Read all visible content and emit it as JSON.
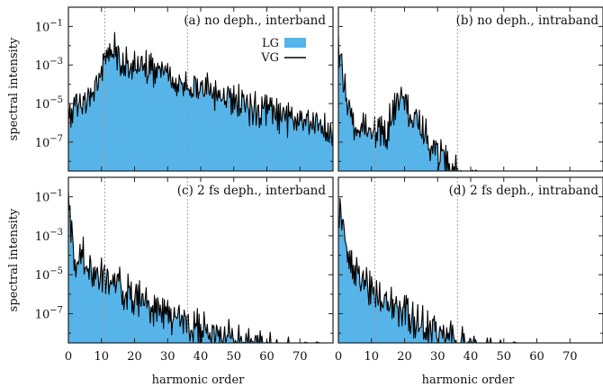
{
  "chart_data": [
    {
      "type": "area",
      "panel_label": "(a) no deph., interband",
      "ylabel": "spectral intensity",
      "xlabel": "",
      "yscale": "log",
      "ylim_log10": [
        -8.5,
        0
      ],
      "xlim": [
        0,
        80
      ],
      "guides_x": [
        11,
        36
      ],
      "x": [
        0,
        2,
        4,
        6,
        8,
        10,
        12,
        14,
        16,
        18,
        20,
        22,
        24,
        26,
        28,
        30,
        32,
        34,
        36,
        38,
        40,
        42,
        44,
        46,
        48,
        50,
        52,
        54,
        56,
        58,
        60,
        62,
        64,
        66,
        68,
        70,
        72,
        74,
        76,
        78,
        80
      ],
      "series": [
        {
          "name": "LG",
          "values_log10": [
            -4.8,
            -3.8,
            -4.6,
            -3.9,
            -3.2,
            -2.5,
            -1.6,
            -1.0,
            -1.7,
            -2.0,
            -2.3,
            -1.9,
            -2.1,
            -2.4,
            -2.3,
            -2.5,
            -2.8,
            -2.6,
            -2.9,
            -3.0,
            -3.3,
            -3.1,
            -3.6,
            -3.9,
            -3.5,
            -4.1,
            -3.9,
            -4.3,
            -4.2,
            -4.5,
            -4.3,
            -4.7,
            -4.6,
            -4.9,
            -4.8,
            -5.0,
            -4.9,
            -5.3,
            -5.1,
            -5.5,
            -5.3
          ]
        },
        {
          "name": "VG",
          "values_log10": [
            -4.8,
            -3.9,
            -4.5,
            -3.9,
            -3.1,
            -2.5,
            -1.5,
            -1.1,
            -1.8,
            -2.0,
            -2.2,
            -1.9,
            -2.2,
            -2.4,
            -2.3,
            -2.4,
            -2.8,
            -2.7,
            -2.9,
            -3.1,
            -3.3,
            -3.1,
            -3.6,
            -3.8,
            -3.5,
            -4.0,
            -3.9,
            -4.3,
            -4.2,
            -4.4,
            -4.3,
            -4.6,
            -4.7,
            -4.9,
            -4.8,
            -5.1,
            -4.9,
            -5.2,
            -5.1,
            -5.4,
            -5.3
          ]
        }
      ],
      "legend": {
        "placement": "top-right",
        "entries": [
          "LG",
          "VG"
        ],
        "colors": {
          "LG": "#56b4e9",
          "VG": "#000000"
        }
      }
    },
    {
      "type": "area",
      "panel_label": "(b) no deph., intraband",
      "xlabel": "",
      "yscale": "log",
      "ylim_log10": [
        -8.5,
        0
      ],
      "xlim": [
        0,
        80
      ],
      "guides_x": [
        11,
        36
      ],
      "x": [
        0,
        2,
        4,
        6,
        8,
        10,
        12,
        14,
        16,
        18,
        20,
        22,
        24,
        26,
        28,
        30,
        32,
        34,
        36,
        38,
        40,
        42,
        44,
        46,
        48,
        50,
        52,
        54,
        56,
        58,
        60,
        62,
        64,
        66,
        68,
        70,
        72,
        74,
        76,
        78,
        80
      ],
      "series": [
        {
          "name": "LG",
          "values_log10": [
            -1.0,
            -3.5,
            -4.8,
            -5.3,
            -5.0,
            -5.6,
            -5.4,
            -5.9,
            -4.6,
            -3.7,
            -3.9,
            -4.8,
            -5.0,
            -5.6,
            -6.0,
            -6.4,
            -6.9,
            -7.3,
            -7.6,
            -8.0,
            -8.3,
            -8.5,
            -8.5,
            -8.5,
            -8.5,
            -8.5,
            -8.5,
            -8.5,
            -8.5,
            -8.5,
            -8.5,
            -8.5,
            -8.5,
            -8.5,
            -8.5,
            -8.5,
            -8.5,
            -8.5,
            -8.5,
            -8.5,
            -8.5
          ]
        },
        {
          "name": "VG",
          "values_log10": [
            -1.0,
            -3.4,
            -4.8,
            -5.2,
            -5.0,
            -5.5,
            -5.3,
            -5.8,
            -4.6,
            -3.6,
            -3.9,
            -4.7,
            -5.0,
            -5.5,
            -6.0,
            -6.4,
            -6.9,
            -7.3,
            -7.6,
            -8.0,
            -8.3,
            -8.5,
            -8.5,
            -8.5,
            -8.5,
            -8.5,
            -8.5,
            -8.5,
            -8.5,
            -8.5,
            -8.5,
            -8.5,
            -8.5,
            -8.5,
            -8.5,
            -8.5,
            -8.5,
            -8.5,
            -8.5,
            -8.5,
            -8.5
          ]
        }
      ]
    },
    {
      "type": "area",
      "panel_label": "(c) 2 fs deph., interband",
      "ylabel": "spectral intensity",
      "xlabel": "harmonic order",
      "yscale": "log",
      "ylim_log10": [
        -8.5,
        0
      ],
      "xlim": [
        0,
        80
      ],
      "x_ticks": [
        0,
        10,
        20,
        30,
        40,
        50,
        60,
        70
      ],
      "guides_x": [
        11,
        36
      ],
      "x": [
        0,
        2,
        4,
        6,
        8,
        10,
        12,
        14,
        16,
        18,
        20,
        22,
        24,
        26,
        28,
        30,
        32,
        34,
        36,
        38,
        40,
        42,
        44,
        46,
        48,
        50,
        52,
        54,
        56,
        58,
        60,
        62,
        64,
        66,
        68,
        70,
        72,
        74,
        76,
        78,
        80
      ],
      "series": [
        {
          "name": "LG",
          "values_log10": [
            -0.6,
            -3.0,
            -2.8,
            -3.4,
            -3.6,
            -4.0,
            -4.1,
            -4.4,
            -4.7,
            -4.9,
            -5.0,
            -5.3,
            -5.5,
            -5.6,
            -5.9,
            -6.1,
            -6.3,
            -6.2,
            -6.6,
            -6.4,
            -6.8,
            -6.9,
            -7.0,
            -7.1,
            -7.2,
            -7.2,
            -7.3,
            -7.4,
            -7.5,
            -7.6,
            -7.7,
            -7.8,
            -7.9,
            -8.0,
            -8.1,
            -8.2,
            -8.3,
            -8.4,
            -8.5,
            -8.5,
            -8.5
          ]
        },
        {
          "name": "VG",
          "values_log10": [
            -0.6,
            -3.1,
            -2.8,
            -3.4,
            -3.6,
            -4.0,
            -4.1,
            -4.4,
            -4.6,
            -4.9,
            -5.0,
            -5.2,
            -5.5,
            -5.7,
            -5.9,
            -6.1,
            -6.2,
            -6.2,
            -6.5,
            -6.4,
            -6.8,
            -6.9,
            -7.0,
            -7.1,
            -7.2,
            -7.3,
            -7.3,
            -7.4,
            -7.5,
            -7.6,
            -7.7,
            -7.8,
            -7.9,
            -8.0,
            -8.1,
            -8.2,
            -8.3,
            -8.4,
            -8.5,
            -8.5,
            -8.5
          ]
        }
      ]
    },
    {
      "type": "area",
      "panel_label": "(d) 2 fs deph., intraband",
      "xlabel": "harmonic order",
      "yscale": "log",
      "ylim_log10": [
        -8.5,
        0
      ],
      "xlim": [
        0,
        80
      ],
      "x_ticks": [
        0,
        10,
        20,
        30,
        40,
        50,
        60,
        70
      ],
      "guides_x": [
        11,
        36
      ],
      "x": [
        0,
        2,
        4,
        6,
        8,
        10,
        12,
        14,
        16,
        18,
        20,
        22,
        24,
        26,
        28,
        30,
        32,
        34,
        36,
        38,
        40,
        42,
        44,
        46,
        48,
        50,
        52,
        54,
        56,
        58,
        60,
        62,
        64,
        66,
        68,
        70,
        72,
        74,
        76,
        78,
        80
      ],
      "series": [
        {
          "name": "LG",
          "values_log10": [
            -0.6,
            -2.0,
            -3.2,
            -3.9,
            -4.3,
            -4.6,
            -5.0,
            -5.2,
            -5.4,
            -5.7,
            -5.9,
            -6.1,
            -6.4,
            -6.5,
            -6.8,
            -6.9,
            -7.0,
            -7.2,
            -7.4,
            -7.6,
            -7.7,
            -7.8,
            -8.0,
            -8.1,
            -8.2,
            -8.3,
            -8.4,
            -8.5,
            -8.5,
            -8.5,
            -8.5,
            -8.5,
            -8.5,
            -8.5,
            -8.5,
            -8.5,
            -8.5,
            -8.5,
            -8.5,
            -8.5,
            -8.5
          ]
        },
        {
          "name": "VG",
          "values_log10": [
            -0.6,
            -2.1,
            -3.2,
            -3.9,
            -4.3,
            -4.6,
            -5.0,
            -5.2,
            -5.4,
            -5.7,
            -5.9,
            -6.1,
            -6.3,
            -6.5,
            -6.8,
            -6.9,
            -7.0,
            -7.2,
            -7.4,
            -7.6,
            -7.7,
            -7.8,
            -8.0,
            -8.1,
            -8.2,
            -8.3,
            -8.4,
            -8.5,
            -8.5,
            -8.5,
            -8.5,
            -8.5,
            -8.5,
            -8.5,
            -8.5,
            -8.5,
            -8.5,
            -8.5,
            -8.5,
            -8.5,
            -8.5
          ]
        }
      ]
    }
  ],
  "y_tick_labels": [
    {
      "value_log10": -1,
      "base": "10",
      "exp": "−1"
    },
    {
      "value_log10": -3,
      "base": "10",
      "exp": "−3"
    },
    {
      "value_log10": -5,
      "base": "10",
      "exp": "−5"
    },
    {
      "value_log10": -7,
      "base": "10",
      "exp": "−7"
    }
  ],
  "colors": {
    "lg_fill": "#56b4e9",
    "vg_line": "#000000",
    "guide": "#999999"
  }
}
